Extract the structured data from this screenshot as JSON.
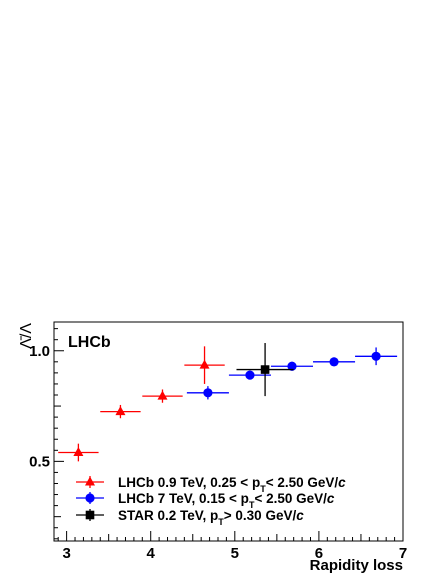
{
  "chart_data": {
    "type": "scatter",
    "title": "",
    "experiment_label": "LHCb",
    "xlabel": "Rapidity loss",
    "ylabel": "Λ̄/Λ",
    "xlim": [
      2.85,
      7.0
    ],
    "ylim": [
      0.14,
      1.13
    ],
    "xticks": [
      3,
      4,
      5,
      6,
      7
    ],
    "yticks": [
      0.5,
      1.0
    ],
    "ytick_labels": [
      "0.5",
      "1.0"
    ],
    "grid": false,
    "legend_position": "bottom-left",
    "series": [
      {
        "name": "LHCb 0.9 TeV, 0.25 < p_T < 2.50 GeV/c",
        "legend_parts": [
          "LHCb  0.9 TeV, 0.25 < p",
          "T",
          "< 2.50 GeV/",
          "c"
        ],
        "color": "#ff0000",
        "marker": "triangle",
        "points": [
          {
            "x": 3.14,
            "y": 0.54,
            "xerr": 0.24,
            "yerr": 0.04
          },
          {
            "x": 3.64,
            "y": 0.725,
            "xerr": 0.24,
            "yerr": 0.03
          },
          {
            "x": 4.14,
            "y": 0.795,
            "xerr": 0.24,
            "yerr": 0.03
          },
          {
            "x": 4.64,
            "y": 0.935,
            "xerr": 0.24,
            "yerr": 0.085
          }
        ]
      },
      {
        "name": "LHCb 7 TeV, 0.15 < p_T < 2.50 GeV/c",
        "legend_parts": [
          "LHCb    7 TeV, 0.15 < p",
          "T",
          "< 2.50 GeV/",
          "c"
        ],
        "color": "#0000ff",
        "marker": "circle",
        "points": [
          {
            "x": 4.68,
            "y": 0.81,
            "xerr": 0.25,
            "yerr": 0.03
          },
          {
            "x": 5.18,
            "y": 0.89,
            "xerr": 0.25,
            "yerr": 0.02
          },
          {
            "x": 5.68,
            "y": 0.93,
            "xerr": 0.25,
            "yerr": 0.02
          },
          {
            "x": 6.18,
            "y": 0.95,
            "xerr": 0.25,
            "yerr": 0.02
          },
          {
            "x": 6.68,
            "y": 0.975,
            "xerr": 0.25,
            "yerr": 0.04
          }
        ]
      },
      {
        "name": "STAR 0.2 TeV, p_T > 0.30 GeV/c",
        "legend_parts": [
          "STAR 0.2 TeV, p",
          "T",
          "> 0.30 GeV/",
          "c"
        ],
        "color": "#000000",
        "marker": "square",
        "points": [
          {
            "x": 5.36,
            "y": 0.915,
            "xerr": 0.34,
            "yerr": 0.12
          }
        ]
      }
    ]
  }
}
